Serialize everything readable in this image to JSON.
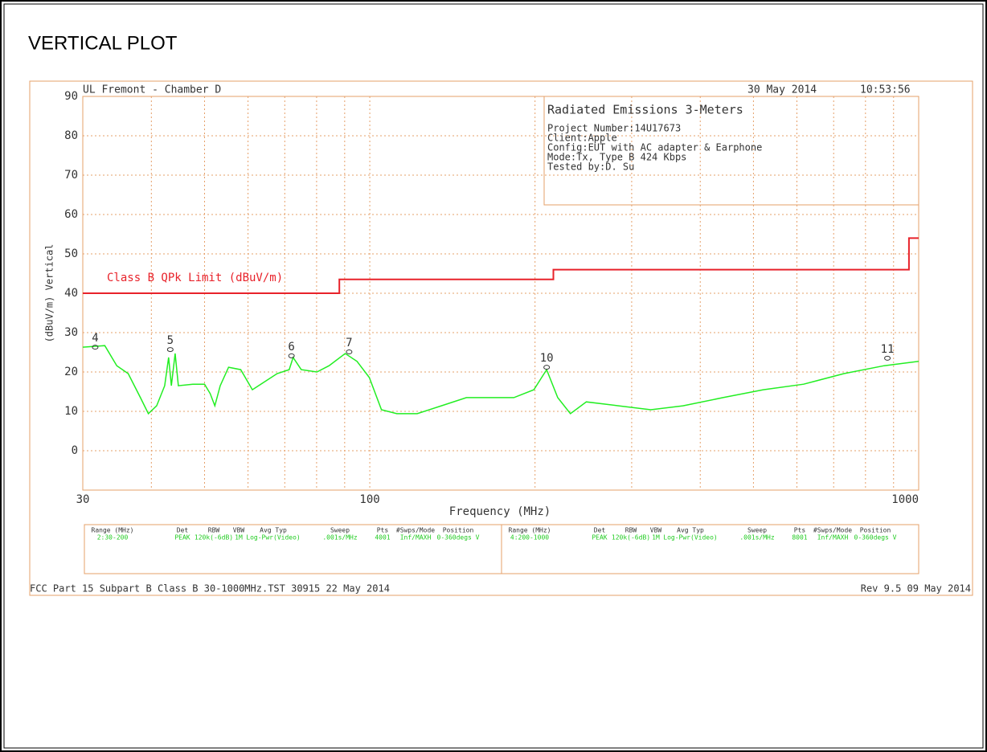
{
  "page_title": "VERTICAL PLOT",
  "chart_data": {
    "type": "line",
    "header_left": "UL Fremont - Chamber D",
    "header_date": "30 May 2014",
    "header_time": "10:53:56",
    "info_box": {
      "title": "Radiated Emissions 3-Meters",
      "lines": [
        "Project Number:14U17673",
        "Client:Apple",
        "Config:EUT with AC adapter & Earphone",
        "Mode:Tx, Type B 424 Kbps",
        "Tested by:D. Su"
      ]
    },
    "xlabel": "Frequency (MHz)",
    "ylabel": "(dBuV/m) Vertical",
    "log_x": true,
    "xlim": [
      30,
      1000
    ],
    "xticks": [
      30,
      100,
      1000
    ],
    "xminor": [
      40,
      50,
      60,
      70,
      80,
      90,
      200,
      300,
      400,
      500,
      600,
      700,
      800,
      900
    ],
    "ylim": [
      -10,
      90
    ],
    "yticks": [
      0,
      10,
      20,
      30,
      40,
      50,
      60,
      70,
      80,
      90
    ],
    "grid": true,
    "series": [
      {
        "name": "Class B QPk Limit (dBuV/m)",
        "color": "#e8222a",
        "x": [
          30,
          88,
          88,
          216,
          216,
          960,
          960,
          1000
        ],
        "values": [
          40,
          40,
          43.5,
          43.5,
          46,
          46,
          54,
          54
        ]
      },
      {
        "color": "#22ee22",
        "x": [
          30,
          32.9,
          34.6,
          36.3,
          38.2,
          39.5,
          40.9,
          42.3,
          43.0,
          43.5,
          44.2,
          44.8,
          47.6,
          50.0,
          51.2,
          52.2,
          53.4,
          55.3,
          58.2,
          61.1,
          63.3,
          67.8,
          71.3,
          72.5,
          75.0,
          80.1,
          84.3,
          90.2,
          94.8,
          99.8,
          105,
          112,
          122,
          135,
          150,
          165,
          183,
          199,
          210,
          220,
          232,
          248,
          284,
          325,
          372,
          440,
          521,
          617,
          731,
          865,
          1000
        ],
        "values": [
          26.3,
          26.7,
          21.6,
          19.6,
          13.5,
          9.4,
          11.4,
          16.5,
          23.7,
          16.5,
          24.7,
          16.5,
          16.9,
          16.9,
          14.5,
          11.4,
          16.5,
          21.2,
          20.6,
          15.5,
          16.9,
          19.6,
          20.6,
          23.7,
          20.6,
          20.0,
          21.6,
          24.7,
          22.7,
          18.6,
          10.4,
          9.4,
          9.4,
          11.4,
          13.5,
          13.5,
          13.5,
          15.5,
          20.6,
          13.5,
          9.4,
          12.4,
          11.4,
          10.4,
          11.4,
          13.5,
          15.5,
          16.9,
          19.6,
          21.6,
          22.7
        ]
      }
    ],
    "markers": [
      {
        "label": "4",
        "x": 31.6,
        "value": 26.3
      },
      {
        "label": "5",
        "x": 43.3,
        "value": 25.7
      },
      {
        "label": "6",
        "x": 72.0,
        "value": 24.1
      },
      {
        "label": "7",
        "x": 91.7,
        "value": 25.1
      },
      {
        "label": "10",
        "x": 210,
        "value": 21.2
      },
      {
        "label": "11",
        "x": 877,
        "value": 23.5
      }
    ],
    "settings": {
      "columns": [
        "Range (MHz)",
        "Det",
        "RBW",
        "VBW",
        "Avg Typ",
        "Sweep",
        "Pts",
        "#Swps/Mode",
        "Position"
      ],
      "rows": [
        [
          "2:30-200",
          "PEAK",
          "120k(-6dB)",
          "1M",
          "Log-Pwr(Video)",
          ".001s/MHz",
          "4001",
          "Inf/MAXH",
          "0-360degs V"
        ],
        [
          "4:200-1000",
          "PEAK",
          "120k(-6dB)",
          "1M",
          "Log-Pwr(Video)",
          ".001s/MHz",
          "8001",
          "Inf/MAXH",
          "0-360degs V"
        ]
      ]
    },
    "footer_left": "FCC Part 15 Subpart B Class B 30-1000MHz.TST 30915 22 May 2014",
    "footer_right": "Rev 9.5 09 May 2014"
  }
}
